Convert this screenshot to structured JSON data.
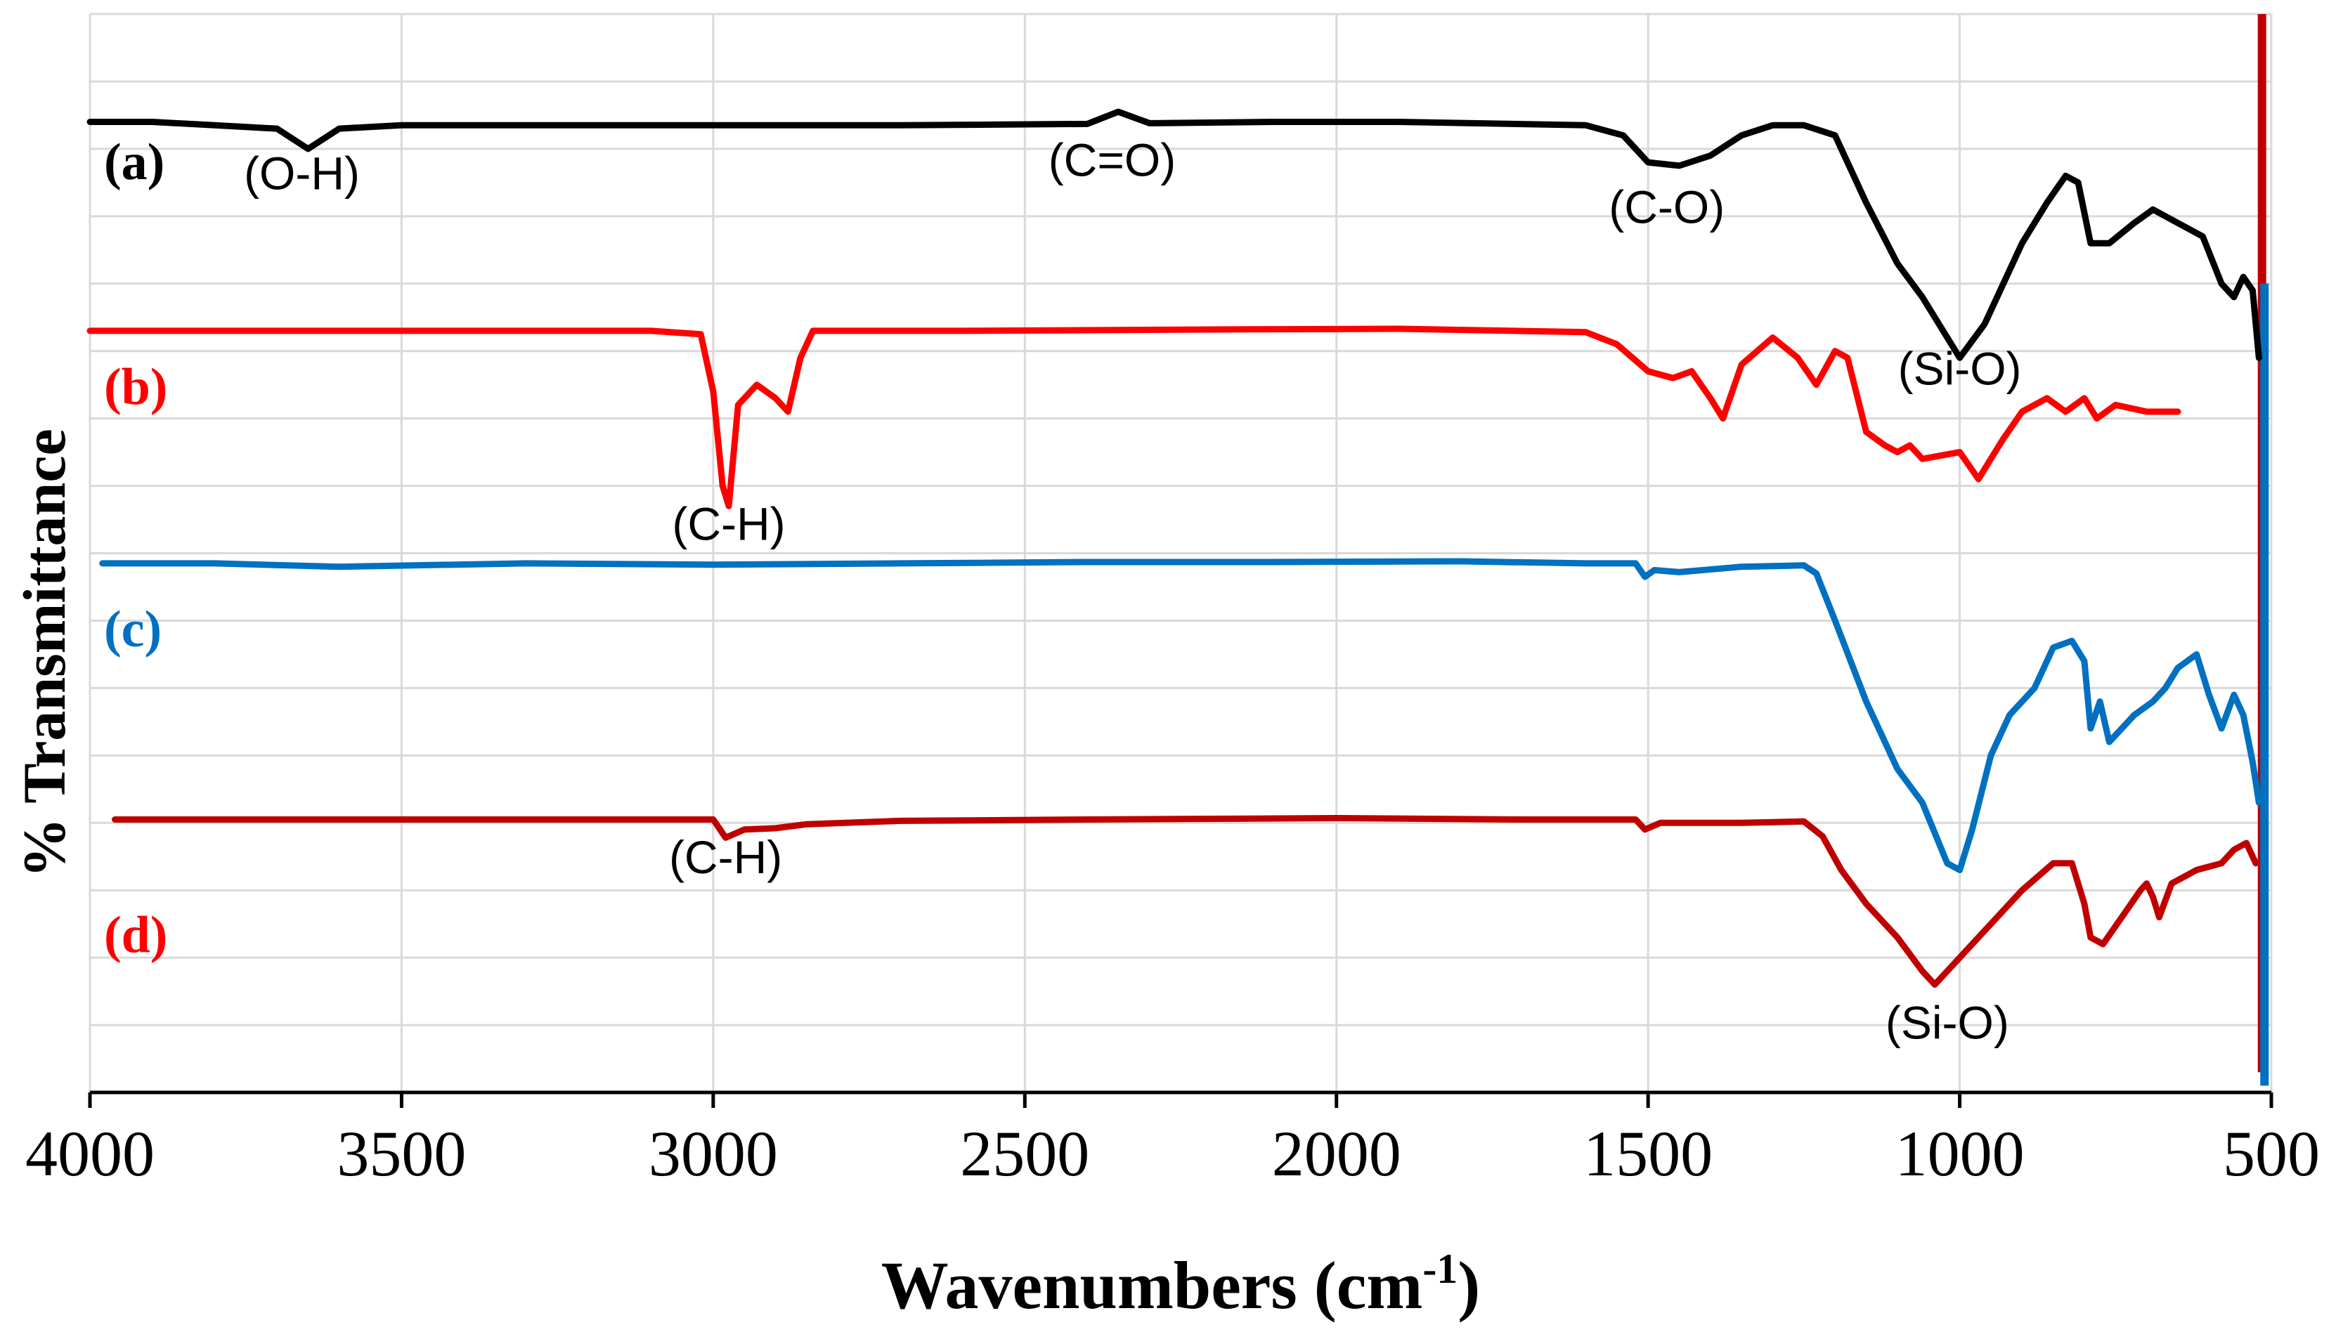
{
  "chart_data": {
    "type": "line",
    "title": "",
    "xlabel": "Wavenumbers (cm",
    "xlabel_sup": "-1",
    "xlabel_close": ")",
    "ylabel": "% Transmittance",
    "xlim": [
      4000,
      500
    ],
    "x_reversed": true,
    "ylim": [
      0,
      16
    ],
    "xticks": [
      4000,
      3500,
      3000,
      2500,
      2000,
      1500,
      1000,
      500
    ],
    "xtick_labels": [
      "4000",
      "3500",
      "3000",
      "2500",
      "2000",
      "1500",
      "1000",
      "500"
    ],
    "grid": true,
    "series": [
      {
        "name": "(a)",
        "color": "#000000",
        "points": [
          [
            4000,
            14.4
          ],
          [
            3900,
            14.4
          ],
          [
            3800,
            14.35
          ],
          [
            3700,
            14.3
          ],
          [
            3650,
            14.0
          ],
          [
            3600,
            14.3
          ],
          [
            3500,
            14.35
          ],
          [
            3200,
            14.35
          ],
          [
            3000,
            14.35
          ],
          [
            2700,
            14.35
          ],
          [
            2400,
            14.37
          ],
          [
            2350,
            14.55
          ],
          [
            2300,
            14.38
          ],
          [
            2100,
            14.4
          ],
          [
            1900,
            14.4
          ],
          [
            1600,
            14.35
          ],
          [
            1540,
            14.2
          ],
          [
            1500,
            13.8
          ],
          [
            1450,
            13.75
          ],
          [
            1400,
            13.9
          ],
          [
            1350,
            14.2
          ],
          [
            1300,
            14.35
          ],
          [
            1250,
            14.35
          ],
          [
            1200,
            14.2
          ],
          [
            1150,
            13.2
          ],
          [
            1100,
            12.3
          ],
          [
            1060,
            11.8
          ],
          [
            1040,
            11.5
          ],
          [
            1000,
            10.9
          ],
          [
            960,
            11.4
          ],
          [
            900,
            12.6
          ],
          [
            860,
            13.2
          ],
          [
            830,
            13.6
          ],
          [
            810,
            13.5
          ],
          [
            790,
            12.6
          ],
          [
            760,
            12.6
          ],
          [
            720,
            12.9
          ],
          [
            690,
            13.1
          ],
          [
            650,
            12.9
          ],
          [
            610,
            12.7
          ],
          [
            580,
            12.0
          ],
          [
            560,
            11.8
          ],
          [
            545,
            12.1
          ],
          [
            530,
            11.9
          ],
          [
            520,
            10.9
          ]
        ]
      },
      {
        "name": "(b)",
        "color": "#ff0000",
        "points": [
          [
            4000,
            11.3
          ],
          [
            3800,
            11.3
          ],
          [
            3400,
            11.3
          ],
          [
            3100,
            11.3
          ],
          [
            3020,
            11.25
          ],
          [
            3000,
            10.4
          ],
          [
            2985,
            9.0
          ],
          [
            2975,
            8.7
          ],
          [
            2960,
            10.2
          ],
          [
            2930,
            10.5
          ],
          [
            2900,
            10.3
          ],
          [
            2880,
            10.1
          ],
          [
            2860,
            10.9
          ],
          [
            2840,
            11.3
          ],
          [
            2600,
            11.3
          ],
          [
            2200,
            11.32
          ],
          [
            1900,
            11.33
          ],
          [
            1600,
            11.28
          ],
          [
            1550,
            11.1
          ],
          [
            1500,
            10.7
          ],
          [
            1460,
            10.6
          ],
          [
            1430,
            10.7
          ],
          [
            1400,
            10.3
          ],
          [
            1380,
            10.0
          ],
          [
            1350,
            10.8
          ],
          [
            1300,
            11.2
          ],
          [
            1260,
            10.9
          ],
          [
            1230,
            10.5
          ],
          [
            1200,
            11.0
          ],
          [
            1180,
            10.9
          ],
          [
            1150,
            9.8
          ],
          [
            1120,
            9.6
          ],
          [
            1100,
            9.5
          ],
          [
            1080,
            9.6
          ],
          [
            1060,
            9.4
          ],
          [
            1000,
            9.5
          ],
          [
            970,
            9.1
          ],
          [
            950,
            9.4
          ],
          [
            930,
            9.7
          ],
          [
            900,
            10.1
          ],
          [
            860,
            10.3
          ],
          [
            830,
            10.1
          ],
          [
            800,
            10.3
          ],
          [
            780,
            10.0
          ],
          [
            750,
            10.2
          ],
          [
            700,
            10.1
          ],
          [
            650,
            10.1
          ]
        ]
      },
      {
        "name": "(c)",
        "color": "#0070c0",
        "points": [
          [
            3980,
            7.85
          ],
          [
            3800,
            7.85
          ],
          [
            3600,
            7.8
          ],
          [
            3300,
            7.85
          ],
          [
            3000,
            7.83
          ],
          [
            2700,
            7.85
          ],
          [
            2400,
            7.87
          ],
          [
            2100,
            7.87
          ],
          [
            1800,
            7.88
          ],
          [
            1600,
            7.85
          ],
          [
            1520,
            7.85
          ],
          [
            1505,
            7.65
          ],
          [
            1490,
            7.75
          ],
          [
            1450,
            7.72
          ],
          [
            1350,
            7.8
          ],
          [
            1250,
            7.82
          ],
          [
            1230,
            7.7
          ],
          [
            1200,
            7.0
          ],
          [
            1150,
            5.8
          ],
          [
            1100,
            4.8
          ],
          [
            1060,
            4.3
          ],
          [
            1020,
            3.4
          ],
          [
            1000,
            3.3
          ],
          [
            980,
            3.9
          ],
          [
            950,
            5.0
          ],
          [
            920,
            5.6
          ],
          [
            880,
            6.0
          ],
          [
            850,
            6.6
          ],
          [
            820,
            6.7
          ],
          [
            800,
            6.4
          ],
          [
            790,
            5.4
          ],
          [
            775,
            5.8
          ],
          [
            760,
            5.2
          ],
          [
            720,
            5.6
          ],
          [
            690,
            5.8
          ],
          [
            670,
            6.0
          ],
          [
            650,
            6.3
          ],
          [
            620,
            6.5
          ],
          [
            600,
            5.9
          ],
          [
            580,
            5.4
          ],
          [
            560,
            5.9
          ],
          [
            545,
            5.6
          ],
          [
            530,
            4.9
          ],
          [
            520,
            4.3
          ]
        ]
      },
      {
        "name": "(d)",
        "color": "#c00000",
        "points": [
          [
            3960,
            4.05
          ],
          [
            3700,
            4.05
          ],
          [
            3400,
            4.05
          ],
          [
            3100,
            4.05
          ],
          [
            3000,
            4.05
          ],
          [
            2980,
            3.78
          ],
          [
            2950,
            3.9
          ],
          [
            2900,
            3.92
          ],
          [
            2850,
            3.98
          ],
          [
            2700,
            4.03
          ],
          [
            2400,
            4.05
          ],
          [
            2000,
            4.07
          ],
          [
            1700,
            4.05
          ],
          [
            1520,
            4.05
          ],
          [
            1505,
            3.9
          ],
          [
            1480,
            4.0
          ],
          [
            1350,
            4.0
          ],
          [
            1250,
            4.02
          ],
          [
            1220,
            3.8
          ],
          [
            1190,
            3.3
          ],
          [
            1150,
            2.8
          ],
          [
            1100,
            2.3
          ],
          [
            1060,
            1.8
          ],
          [
            1040,
            1.6
          ],
          [
            1000,
            2.0
          ],
          [
            950,
            2.5
          ],
          [
            900,
            3.0
          ],
          [
            850,
            3.4
          ],
          [
            820,
            3.4
          ],
          [
            800,
            2.8
          ],
          [
            790,
            2.3
          ],
          [
            770,
            2.2
          ],
          [
            740,
            2.6
          ],
          [
            710,
            3.0
          ],
          [
            700,
            3.1
          ],
          [
            690,
            2.9
          ],
          [
            680,
            2.6
          ],
          [
            660,
            3.1
          ],
          [
            620,
            3.3
          ],
          [
            580,
            3.4
          ],
          [
            560,
            3.6
          ],
          [
            540,
            3.7
          ],
          [
            525,
            3.4
          ]
        ]
      }
    ],
    "series_labels": [
      {
        "text": "(a)",
        "color": "#000000"
      },
      {
        "text": "(b)",
        "color": "#ff0000"
      },
      {
        "text": "(c)",
        "color": "#0070c0"
      },
      {
        "text": "(d)",
        "color": "#ff0000"
      }
    ],
    "annotations": [
      {
        "text": "(O-H)",
        "x": 3660,
        "y": 13.4
      },
      {
        "text": "(C=O)",
        "x": 2360,
        "y": 13.6
      },
      {
        "text": "(C-O)",
        "x": 1470,
        "y": 12.9
      },
      {
        "text": "(Si-O)",
        "x": 1000,
        "y": 10.5
      },
      {
        "text": "(C-H)",
        "x": 2975,
        "y": 8.2
      },
      {
        "text": "(C-H)",
        "x": 2980,
        "y": 3.25
      },
      {
        "text": "(Si-O)",
        "x": 1020,
        "y": 0.8
      }
    ],
    "right_edge_bars": [
      {
        "color": "#c00000",
        "x": 515,
        "y_from": 16,
        "y_to": 0.3
      },
      {
        "color": "#0070c0",
        "x": 511,
        "y_from": 12.0,
        "y_to": 0.1
      }
    ]
  }
}
